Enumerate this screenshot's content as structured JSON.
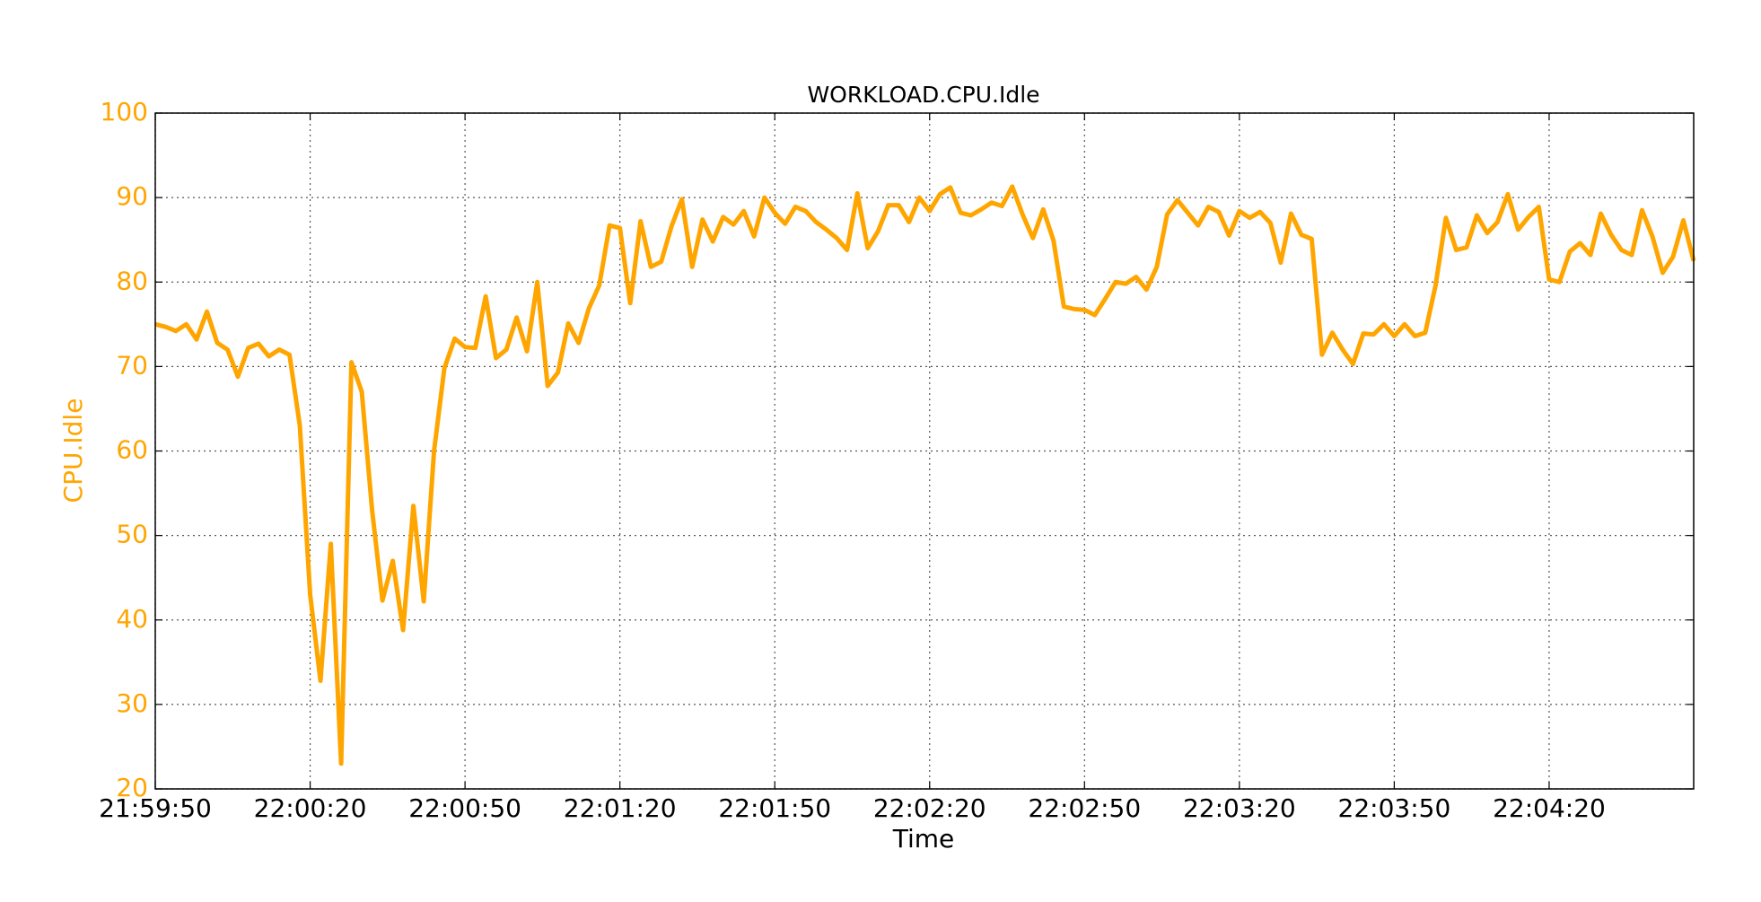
{
  "chart_data": {
    "type": "line",
    "title": "WORKLOAD.CPU.Idle",
    "xlabel": "Time",
    "ylabel": "CPU.Idle",
    "x": [
      "21:59:50",
      "21:59:52",
      "21:59:54",
      "21:59:56",
      "21:59:58",
      "22:00:00",
      "22:00:02",
      "22:00:04",
      "22:00:06",
      "22:00:08",
      "22:00:10",
      "22:00:12",
      "22:00:14",
      "22:00:16",
      "22:00:18",
      "22:00:20",
      "22:00:22",
      "22:00:24",
      "22:00:26",
      "22:00:28",
      "22:00:30",
      "22:00:32",
      "22:00:34",
      "22:00:36",
      "22:00:38",
      "22:00:40",
      "22:00:42",
      "22:00:44",
      "22:00:46",
      "22:00:48",
      "22:00:50",
      "22:00:52",
      "22:00:54",
      "22:00:56",
      "22:00:58",
      "22:01:00",
      "22:01:02",
      "22:01:04",
      "22:01:06",
      "22:01:08",
      "22:01:10",
      "22:01:12",
      "22:01:14",
      "22:01:16",
      "22:01:18",
      "22:01:20",
      "22:01:22",
      "22:01:24",
      "22:01:26",
      "22:01:28",
      "22:01:30",
      "22:01:32",
      "22:01:34",
      "22:01:36",
      "22:01:38",
      "22:01:40",
      "22:01:42",
      "22:01:44",
      "22:01:46",
      "22:01:48",
      "22:01:50",
      "22:01:52",
      "22:01:54",
      "22:01:56",
      "22:01:58",
      "22:02:00",
      "22:02:02",
      "22:02:04",
      "22:02:06",
      "22:02:08",
      "22:02:10",
      "22:02:12",
      "22:02:14",
      "22:02:16",
      "22:02:18",
      "22:02:20",
      "22:02:22",
      "22:02:24",
      "22:02:26",
      "22:02:28",
      "22:02:30",
      "22:02:32",
      "22:02:34",
      "22:02:36",
      "22:02:38",
      "22:02:40",
      "22:02:42",
      "22:02:44",
      "22:02:46",
      "22:02:48",
      "22:02:50",
      "22:02:52",
      "22:02:54",
      "22:02:56",
      "22:02:58",
      "22:03:00",
      "22:03:02",
      "22:03:04",
      "22:03:06",
      "22:03:08",
      "22:03:10",
      "22:03:12",
      "22:03:14",
      "22:03:16",
      "22:03:18",
      "22:03:20",
      "22:03:22",
      "22:03:24",
      "22:03:26",
      "22:03:28",
      "22:03:30",
      "22:03:32",
      "22:03:34",
      "22:03:36",
      "22:03:38",
      "22:03:40",
      "22:03:42",
      "22:03:44",
      "22:03:46",
      "22:03:48",
      "22:03:50",
      "22:03:52",
      "22:03:54",
      "22:03:56",
      "22:03:58",
      "22:04:00",
      "22:04:02",
      "22:04:04",
      "22:04:06",
      "22:04:08",
      "22:04:10",
      "22:04:12",
      "22:04:14",
      "22:04:16",
      "22:04:18",
      "22:04:20",
      "22:04:22",
      "22:04:24",
      "22:04:26",
      "22:04:28",
      "22:04:30",
      "22:04:32",
      "22:04:34",
      "22:04:36",
      "22:04:38",
      "22:04:40",
      "22:04:42",
      "22:04:44",
      "22:04:46",
      "22:04:48"
    ],
    "series": [
      {
        "name": "CPU.Idle",
        "color": "#ffa500",
        "values": [
          75,
          74.7,
          74.2,
          75,
          73.2,
          76.5,
          72.8,
          72,
          68.8,
          72.2,
          72.7,
          71.2,
          72,
          71.4,
          63,
          43,
          32.8,
          49,
          23,
          70.5,
          67,
          53,
          42.3,
          47,
          38.8,
          53.5,
          42.2,
          60,
          69.8,
          73.3,
          72.3,
          72.2,
          78.3,
          71,
          72,
          75.8,
          71.8,
          80,
          67.7,
          69.3,
          75.1,
          72.8,
          76.9,
          79.6,
          86.7,
          86.4,
          77.5,
          87.2,
          81.8,
          82.4,
          86.6,
          89.8,
          81.8,
          87.4,
          84.8,
          87.7,
          86.8,
          88.4,
          85.4,
          90,
          88.2,
          86.9,
          88.9,
          88.4,
          87.1,
          86.2,
          85.2,
          83.8,
          90.5,
          84,
          86,
          89.1,
          89.1,
          87.1,
          90,
          88.4,
          90.4,
          91.2,
          88.2,
          87.9,
          88.6,
          89.4,
          89,
          91.3,
          88,
          85.2,
          88.6,
          84.9,
          77.1,
          76.8,
          76.7,
          76.1,
          78,
          80,
          79.8,
          80.6,
          79.1,
          81.8,
          88,
          89.7,
          88.2,
          86.7,
          88.9,
          88.3,
          85.5,
          88.4,
          87.6,
          88.3,
          87,
          82.3,
          88.1,
          85.6,
          85.1,
          71.4,
          74,
          72,
          70.3,
          73.9,
          73.8,
          75,
          73.6,
          75,
          73.6,
          74,
          79.6,
          87.6,
          83.8,
          84.1,
          87.9,
          85.8,
          87.1,
          90.4,
          86.2,
          87.7,
          88.9,
          80.3,
          80,
          83.6,
          84.6,
          83.2,
          88.1,
          85.6,
          83.8,
          83.2,
          88.5,
          85.4,
          81.1,
          83,
          87.3,
          82.5
        ]
      }
    ],
    "xlim": [
      "21:59:50",
      "22:04:48"
    ],
    "xticks": [
      "21:59:50",
      "22:00:20",
      "22:00:50",
      "22:01:20",
      "22:01:50",
      "22:02:20",
      "22:02:50",
      "22:03:20",
      "22:03:50",
      "22:04:20"
    ],
    "ylim": [
      20,
      100
    ],
    "yticks": [
      20,
      30,
      40,
      50,
      60,
      70,
      80,
      90,
      100
    ],
    "grid": true,
    "ylabel_color": "#ffa500"
  }
}
